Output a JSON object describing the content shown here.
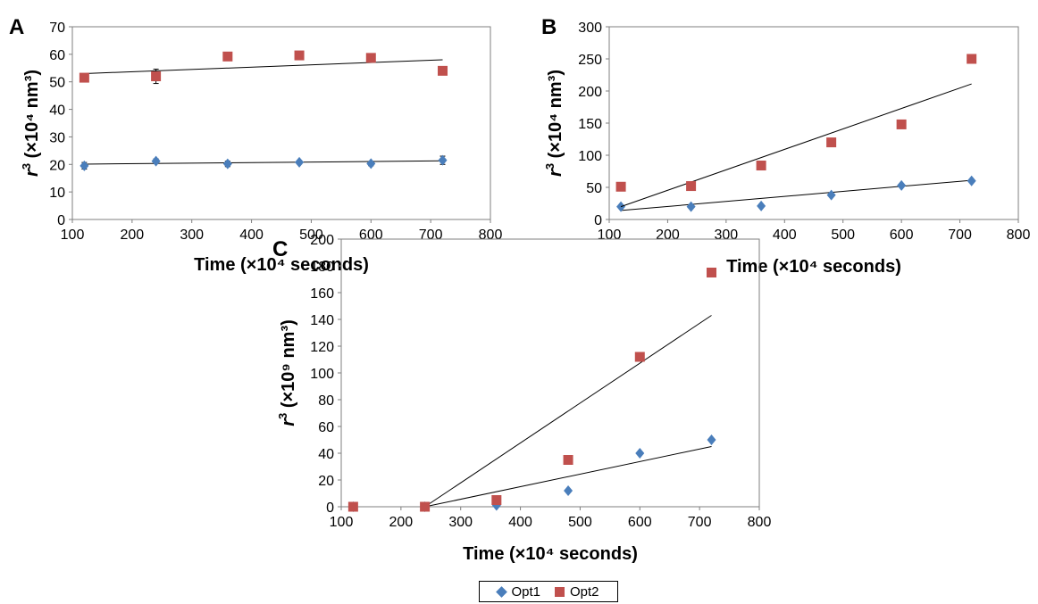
{
  "legend": {
    "series1": "Opt1",
    "series2": "Opt2"
  },
  "colors": {
    "opt1": "#4a7ebb",
    "opt2": "#c0504d",
    "trend": "#000000",
    "grid_frame": "#7f7f7f"
  },
  "chart_data": [
    {
      "panel_label": "A",
      "type": "scatter",
      "xlabel": "Time (×10⁴ seconds)",
      "ylabel_main": "r",
      "ylabel_sup": "3",
      "ylabel_rest": " (×10⁴ nm³)",
      "xlim": [
        100,
        800
      ],
      "xticks": [
        100,
        200,
        300,
        400,
        500,
        600,
        700,
        800
      ],
      "ylim": [
        0,
        70
      ],
      "yticks": [
        0,
        10,
        20,
        30,
        40,
        50,
        60,
        70
      ],
      "series": [
        {
          "name": "Opt1",
          "marker": "diamond",
          "x": [
            120,
            240,
            360,
            480,
            600,
            720
          ],
          "y": [
            19.5,
            21.2,
            20.2,
            20.8,
            20.3,
            21.5
          ],
          "err": [
            1.2,
            0.8,
            1.0,
            0.6,
            0.8,
            1.5
          ],
          "trend": {
            "x": [
              120,
              720
            ],
            "y": [
              20.1,
              21.3
            ]
          }
        },
        {
          "name": "Opt2",
          "marker": "square",
          "x": [
            120,
            240,
            360,
            480,
            600,
            720
          ],
          "y": [
            51.5,
            52.0,
            59.2,
            59.6,
            58.7,
            54.0
          ],
          "err": [
            0.6,
            2.6,
            0.6,
            0.4,
            0.4,
            0.5
          ],
          "trend": {
            "x": [
              120,
              720
            ],
            "y": [
              53.0,
              58.0
            ]
          }
        }
      ]
    },
    {
      "panel_label": "B",
      "type": "scatter",
      "xlabel": "Time (×10⁴ seconds)",
      "ylabel_main": "r",
      "ylabel_sup": "3",
      "ylabel_rest": " (×10⁴ nm³)",
      "xlim": [
        100,
        800
      ],
      "xticks": [
        100,
        200,
        300,
        400,
        500,
        600,
        700,
        800
      ],
      "ylim": [
        0,
        300
      ],
      "yticks": [
        0,
        50,
        100,
        150,
        200,
        250,
        300
      ],
      "series": [
        {
          "name": "Opt1",
          "marker": "diamond",
          "x": [
            120,
            240,
            360,
            480,
            600,
            720
          ],
          "y": [
            20,
            20,
            21,
            38,
            53,
            60
          ],
          "trend": {
            "x": [
              120,
              720
            ],
            "y": [
              14,
              61
            ]
          }
        },
        {
          "name": "Opt2",
          "marker": "square",
          "x": [
            120,
            240,
            360,
            480,
            600,
            720
          ],
          "y": [
            51,
            52,
            84,
            120,
            148,
            250
          ],
          "trend": {
            "x": [
              120,
              720
            ],
            "y": [
              20,
              211
            ]
          }
        }
      ]
    },
    {
      "panel_label": "C",
      "type": "scatter",
      "xlabel": "Time (×10⁴ seconds)",
      "ylabel_main": "r",
      "ylabel_sup": "3",
      "ylabel_rest": " (×10⁹ nm³)",
      "xlim": [
        100,
        800
      ],
      "xticks": [
        100,
        200,
        300,
        400,
        500,
        600,
        700,
        800
      ],
      "ylim": [
        0,
        200
      ],
      "yticks": [
        0,
        20,
        40,
        60,
        80,
        100,
        120,
        140,
        160,
        180,
        200
      ],
      "series": [
        {
          "name": "Opt1",
          "marker": "diamond",
          "x": [
            120,
            240,
            360,
            480,
            600,
            720
          ],
          "y": [
            0,
            0,
            1,
            12,
            40,
            50
          ],
          "trend": {
            "x": [
              240,
              720
            ],
            "y": [
              0,
              45
            ]
          }
        },
        {
          "name": "Opt2",
          "marker": "square",
          "x": [
            120,
            240,
            360,
            480,
            600,
            720
          ],
          "y": [
            0,
            0,
            5,
            35,
            112,
            175
          ],
          "trend": {
            "x": [
              240,
              720
            ],
            "y": [
              0,
              143
            ]
          }
        }
      ]
    }
  ]
}
